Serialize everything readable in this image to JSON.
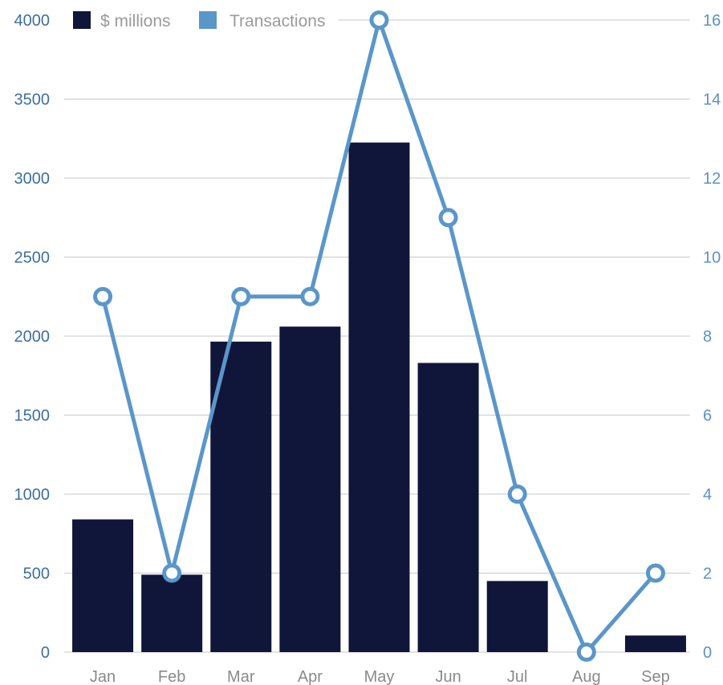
{
  "chart_data": {
    "type": "bar",
    "categories": [
      "Jan",
      "Feb",
      "Mar",
      "Apr",
      "May",
      "Jun",
      "Jul",
      "Aug",
      "Sep"
    ],
    "series": [
      {
        "name": "$ millions",
        "type": "bar",
        "axis": "left",
        "color": "#10163a",
        "values": [
          840,
          490,
          1965,
          2060,
          3225,
          1830,
          450,
          0,
          105
        ]
      },
      {
        "name": "Transactions",
        "type": "line",
        "axis": "right",
        "color": "#5b96c9",
        "values": [
          9,
          2,
          9,
          9,
          16,
          11,
          4,
          0,
          2
        ]
      }
    ],
    "ylim": [
      0,
      4000
    ],
    "yticks": [
      "0",
      "500",
      "1000",
      "1500",
      "2000",
      "2500",
      "3000",
      "3500",
      "4000"
    ],
    "y2lim": [
      0,
      16
    ],
    "y2ticks": [
      "0",
      "2",
      "4",
      "6",
      "8",
      "10",
      "12",
      "14",
      "16"
    ],
    "grid": true,
    "legend_position": "top-left"
  }
}
